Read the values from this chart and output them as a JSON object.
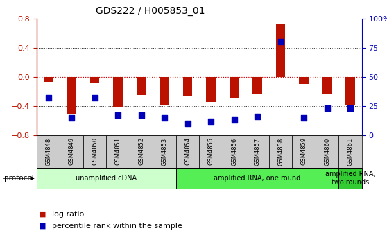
{
  "title": "GDS222 / H005853_01",
  "samples": [
    "GSM4848",
    "GSM4849",
    "GSM4850",
    "GSM4851",
    "GSM4852",
    "GSM4853",
    "GSM4854",
    "GSM4855",
    "GSM4856",
    "GSM4857",
    "GSM4858",
    "GSM4859",
    "GSM4860",
    "GSM4861"
  ],
  "log_ratio": [
    -0.07,
    -0.52,
    -0.08,
    -0.42,
    -0.25,
    -0.38,
    -0.27,
    -0.34,
    -0.3,
    -0.23,
    0.72,
    -0.1,
    -0.23,
    -0.38
  ],
  "percentile": [
    32,
    15,
    32,
    17,
    17,
    15,
    10,
    12,
    13,
    16,
    80,
    15,
    23,
    23
  ],
  "protocols": [
    {
      "label": "unamplified cDNA",
      "start": 0,
      "end": 5,
      "color": "#ccffcc"
    },
    {
      "label": "amplified RNA, one round",
      "start": 6,
      "end": 12,
      "color": "#55ee55"
    },
    {
      "label": "amplified RNA,\ntwo rounds",
      "start": 13,
      "end": 13,
      "color": "#33cc33"
    }
  ],
  "left_ylim": [
    -0.8,
    0.8
  ],
  "right_ylim": [
    0,
    100
  ],
  "left_yticks": [
    -0.8,
    -0.4,
    0.0,
    0.4,
    0.8
  ],
  "right_yticks": [
    0,
    25,
    50,
    75,
    100
  ],
  "right_yticklabels": [
    "0",
    "25",
    "50",
    "75",
    "100%"
  ],
  "bar_color": "#bb1100",
  "dot_color": "#0000bb",
  "background_color": "#ffffff",
  "zero_line_color": "#cc0000",
  "dotted_line_color": "#222222",
  "cell_color": "#cccccc",
  "bar_width": 0.4,
  "dot_size": 30
}
